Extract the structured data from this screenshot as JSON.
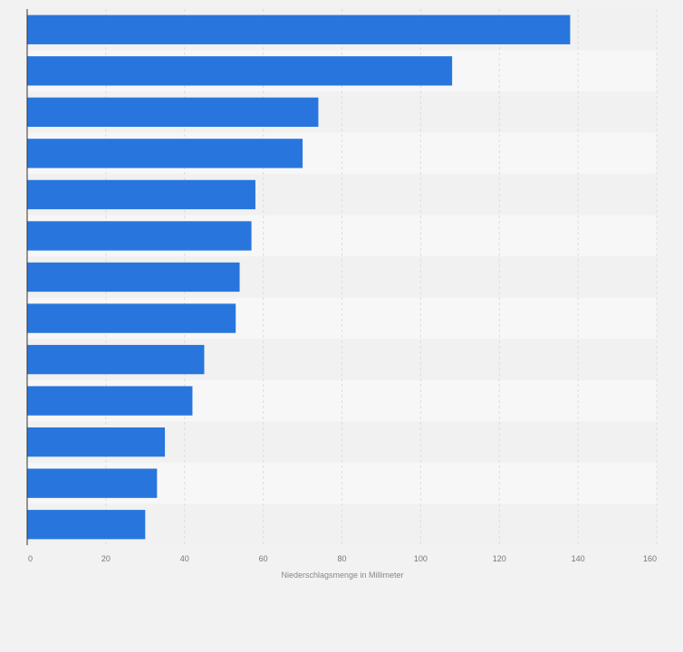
{
  "chart_data": {
    "type": "bar",
    "orientation": "horizontal",
    "title": "",
    "xlabel": "Niederschlagsmenge in Millimeter",
    "ylabel": "",
    "categories": [
      "",
      "",
      "",
      "",
      "",
      "",
      "",
      "",
      "",
      "",
      "",
      "",
      ""
    ],
    "values": [
      138,
      108,
      74,
      70,
      58,
      57,
      54,
      53,
      45,
      42,
      35,
      33,
      30
    ],
    "xlim": [
      0,
      160
    ],
    "xticks": [
      0,
      20,
      40,
      60,
      80,
      100,
      120,
      140,
      160
    ],
    "xtick_labels": [
      "0",
      "20",
      "40",
      "60",
      "80",
      "100",
      "120",
      "140",
      "160"
    ],
    "grid": true,
    "legend": "none",
    "colors": {
      "bar": "#2876dd",
      "band_light": "#f7f7f7",
      "band_dark": "#f1f1f1",
      "page_bg": "#f2f2f2",
      "grid": "#dddddd",
      "axis": "#333333"
    }
  }
}
